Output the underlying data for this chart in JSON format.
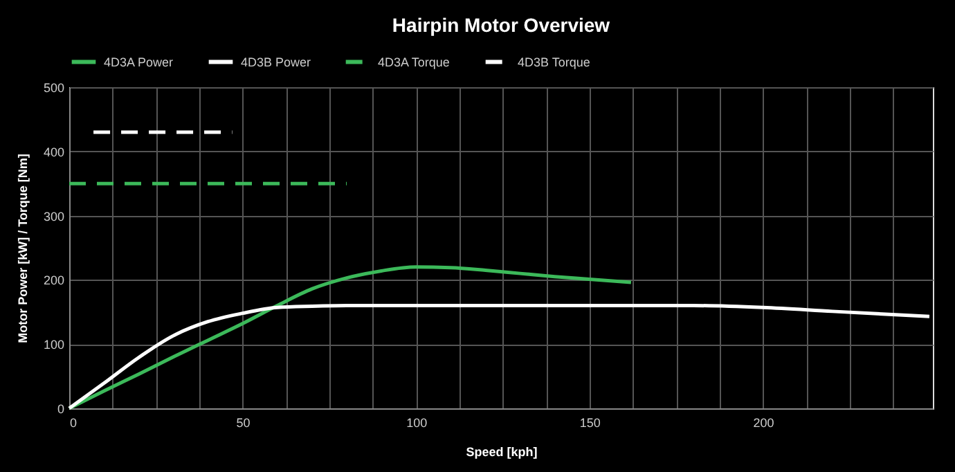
{
  "chart_data": {
    "type": "line",
    "title": "Hairpin Motor Overview",
    "xlabel": "Speed [kph]",
    "ylabel": "Motor Power [kW] / Torque [Nm]",
    "xlim": [
      0,
      249
    ],
    "xticks": [
      0,
      {
        "value": 12.5,
        "label": null
      },
      {
        "value": 25,
        "label": null
      },
      {
        "value": 37.5,
        "label": null
      },
      50,
      {
        "value": 62.5,
        "label": null
      },
      {
        "value": 75,
        "label": null
      },
      {
        "value": 87.5,
        "label": null
      },
      100,
      {
        "value": 112.5,
        "label": null
      },
      {
        "value": 125,
        "label": null
      },
      {
        "value": 137.5,
        "label": null
      },
      150,
      {
        "value": 162.5,
        "label": null
      },
      {
        "value": 175,
        "label": null
      },
      {
        "value": 187.5,
        "label": null
      },
      200,
      {
        "value": 212.5,
        "label": null
      },
      {
        "value": 225,
        "label": null
      },
      {
        "value": 237.5,
        "label": null
      }
    ],
    "ylim": [
      0,
      500
    ],
    "yticks": [
      0,
      100,
      200,
      300,
      400,
      500
    ],
    "grid": true,
    "legend": "top",
    "marker": "none",
    "series": [
      {
        "name": "4D3A Power",
        "color": "#3cb95a",
        "line_style": "solid",
        "x": [
          0,
          10,
          20,
          30,
          40,
          50,
          60,
          70,
          80,
          90,
          100,
          110,
          120,
          130,
          140,
          150,
          162
        ],
        "values": [
          0,
          27,
          53,
          80,
          106,
          132,
          160,
          186,
          203,
          214,
          220,
          219,
          215,
          210,
          205,
          201,
          196
        ]
      },
      {
        "name": "4D3B Power",
        "color": "#ffffff",
        "line_style": "solid",
        "x": [
          0,
          10,
          20,
          30,
          40,
          50,
          60,
          70,
          80,
          100,
          120,
          140,
          160,
          180,
          200,
          220,
          248
        ],
        "values": [
          0,
          39,
          79,
          113,
          135,
          148,
          157,
          159,
          160,
          160,
          160,
          160,
          160,
          160,
          157,
          151,
          143
        ]
      },
      {
        "name": "4D3A Torque",
        "color": "#3cb95a",
        "line_style": "dashed",
        "x": [
          0,
          80
        ],
        "values": [
          350,
          350
        ]
      },
      {
        "name": "4D3B Torque",
        "color": "#ffffff",
        "line_style": "dashed",
        "x": [
          7,
          47
        ],
        "values": [
          430,
          430
        ]
      }
    ]
  }
}
